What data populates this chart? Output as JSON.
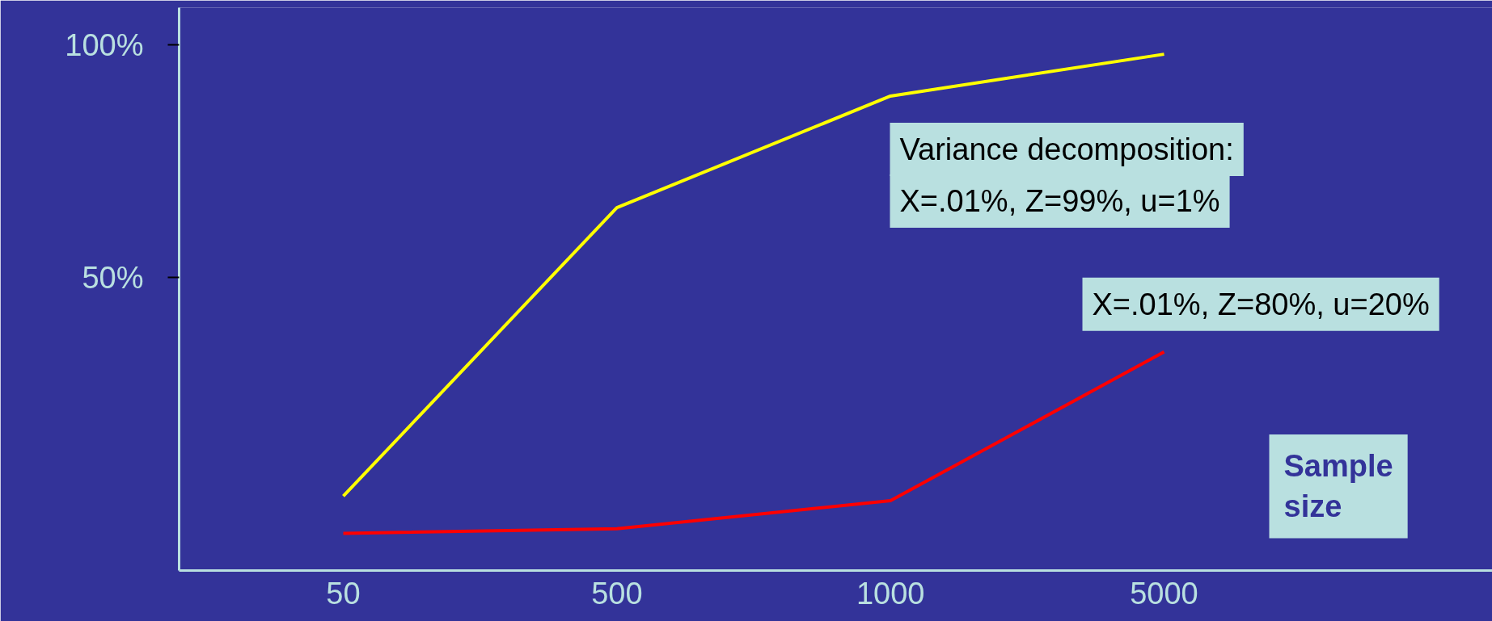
{
  "chart_data": {
    "type": "line",
    "xlabel": "Sample size",
    "annotations": [
      "Variance decomposition:"
    ],
    "categories": [
      "50",
      "500",
      "1000",
      "5000"
    ],
    "ylim": [
      -13,
      108
    ],
    "yticks": [
      {
        "value": 50,
        "label": "50%"
      },
      {
        "value": 100,
        "label": "100%"
      }
    ],
    "grid": false,
    "marker": "none",
    "line_style": "solid",
    "series": [
      {
        "name": "X=.01%, Z=99%, u=1%",
        "color": "#ffff00",
        "values": [
          3,
          65,
          89,
          98
        ]
      },
      {
        "name": "X=.01%, Z=80%, u=20%",
        "color": "#ff0000",
        "values": [
          -5,
          -4,
          2,
          34
        ]
      }
    ]
  }
}
